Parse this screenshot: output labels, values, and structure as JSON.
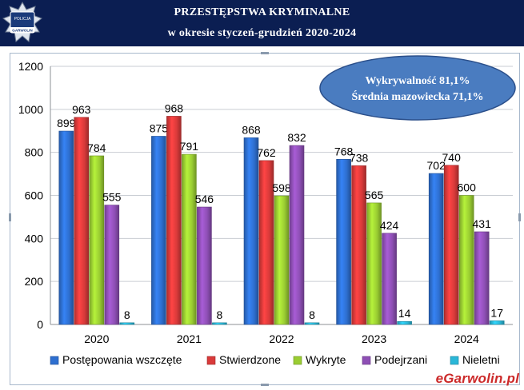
{
  "header": {
    "title_line1": "PRZESTĘPSTWA KRYMINALNE",
    "title_line2": "w okresie styczeń-grudzień 2020-2024",
    "logo_text_top": "POLICJA",
    "logo_text_bottom": "GARWOLIN",
    "background": "#0b1e52"
  },
  "watermark": "eGarwolin.pl",
  "chart_data": {
    "type": "bar",
    "categories": [
      "2020",
      "2021",
      "2022",
      "2023",
      "2024"
    ],
    "series": [
      {
        "name": "Postępowania wszczęte",
        "color": "#2e6fd0",
        "values": [
          899,
          875,
          868,
          768,
          702
        ]
      },
      {
        "name": "Stwierdzone",
        "color": "#d93a3a",
        "values": [
          963,
          968,
          762,
          738,
          740
        ]
      },
      {
        "name": "Wykryte",
        "color": "#9acd32",
        "values": [
          784,
          791,
          598,
          565,
          600
        ]
      },
      {
        "name": "Podejrzani",
        "color": "#8e4fb5",
        "values": [
          555,
          546,
          832,
          424,
          431
        ]
      },
      {
        "name": "Nieletni",
        "color": "#2ab7d8",
        "values": [
          8,
          8,
          8,
          14,
          17
        ]
      }
    ],
    "ylim": [
      0,
      1200
    ],
    "yticks": [
      0,
      200,
      400,
      600,
      800,
      1000,
      1200
    ],
    "grid": true,
    "legend": "bottom",
    "annotation": {
      "line1": "Wykrywalność  81,1%",
      "line2": "Średnia mazowiecka  71,1%",
      "fill": "#4a7cc0"
    }
  }
}
